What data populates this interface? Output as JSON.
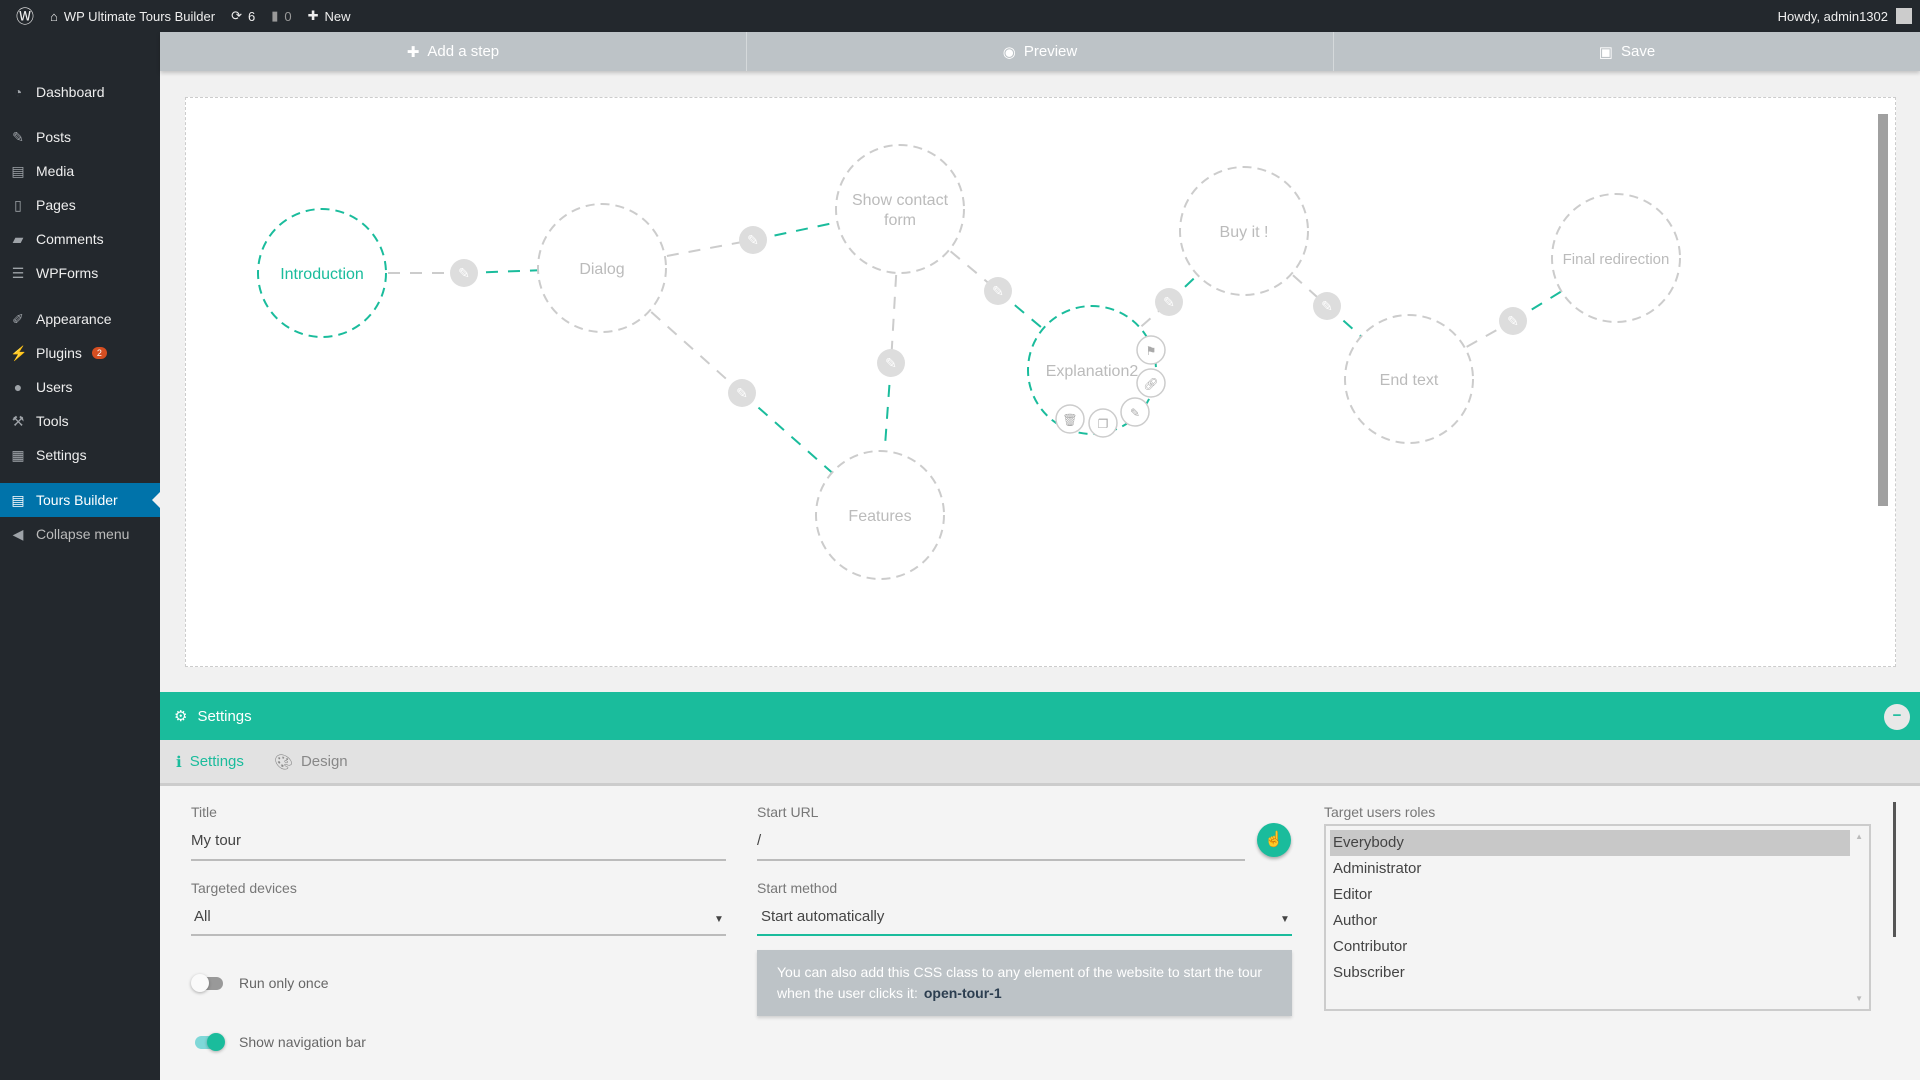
{
  "adminbar": {
    "site": "WP Ultimate Tours Builder",
    "updates": "6",
    "comments": "0",
    "new": "New",
    "howdy": "Howdy, admin1302"
  },
  "sidebar": {
    "items": [
      {
        "label": "Dashboard",
        "icon": "dashboard-icon"
      },
      {
        "label": "Posts",
        "icon": "pin-icon"
      },
      {
        "label": "Media",
        "icon": "media-icon"
      },
      {
        "label": "Pages",
        "icon": "pages-icon"
      },
      {
        "label": "Comments",
        "icon": "comment-icon"
      },
      {
        "label": "WPForms",
        "icon": "forms-icon"
      },
      {
        "label": "Appearance",
        "icon": "brush-icon"
      },
      {
        "label": "Plugins",
        "icon": "plugin-icon",
        "badge": "2"
      },
      {
        "label": "Users",
        "icon": "user-icon"
      },
      {
        "label": "Tools",
        "icon": "wrench-icon"
      },
      {
        "label": "Settings",
        "icon": "settings-icon"
      },
      {
        "label": "Tours Builder",
        "icon": "doc-icon",
        "active": true
      },
      {
        "label": "Collapse menu",
        "icon": "collapse-icon"
      }
    ]
  },
  "toolbar": {
    "add": "Add a step",
    "preview": "Preview",
    "save": "Save"
  },
  "graph": {
    "nodes": [
      "Introduction",
      "Dialog",
      "Show contact form",
      "Features",
      "Explanation2",
      "Buy it !",
      "End text",
      "Final redirection"
    ],
    "active_nodes": [
      "Introduction",
      "Explanation2"
    ],
    "accent": "#1abc9c"
  },
  "settings": {
    "header": "Settings",
    "tabs": [
      "Settings",
      "Design"
    ],
    "title_label": "Title",
    "title_value": "My tour",
    "url_label": "Start URL",
    "url_value": "/",
    "devices_label": "Targeted devices",
    "devices_value": "All",
    "method_label": "Start method",
    "method_value": "Start automatically",
    "info_text": "You can also add this CSS class to any element of the website to start the tour when the user clicks it:",
    "info_class": "open-tour-1",
    "run_once_label": "Run only once",
    "run_once": false,
    "navbar_label": "Show navigation bar",
    "navbar": true,
    "roles_label": "Target users roles",
    "roles": [
      "Everybody",
      "Administrator",
      "Editor",
      "Author",
      "Contributor",
      "Subscriber"
    ],
    "roles_selected": "Everybody"
  }
}
